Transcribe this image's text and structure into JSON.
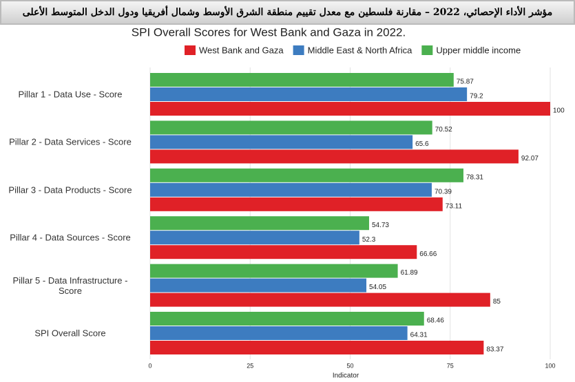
{
  "header": {
    "title": "مؤشر الأداء الإحصائي، 2022 – مقارنة فلسطين مع معدل تقييم منطقة الشرق الأوسط وشمال أفريقيا ودول الدخل المتوسط الأعلى"
  },
  "chart_data": {
    "type": "bar",
    "orientation": "horizontal",
    "title": "SPI Overall Scores for West Bank and Gaza in 2022.",
    "x_label": "Indicator",
    "categories": [
      "Pillar 1 - Data Use - Score",
      "Pillar 2 - Data Services - Score",
      "Pillar 3 - Data Products - Score",
      "Pillar 4 - Data Sources - Score",
      "Pillar 5 - Data Infrastructure - Score",
      "SPI Overall Score"
    ],
    "series": [
      {
        "name": "West Bank and Gaza",
        "color": "#e02127",
        "values": [
          100,
          92.07,
          73.11,
          66.66,
          85,
          83.37
        ]
      },
      {
        "name": "Middle East & North Africa",
        "color": "#3d7cc0",
        "values": [
          79.2,
          65.6,
          70.39,
          52.3,
          54.05,
          64.31
        ]
      },
      {
        "name": "Upper middle income",
        "color": "#4bb04f",
        "values": [
          75.87,
          70.52,
          78.31,
          54.73,
          61.89,
          68.46
        ]
      }
    ],
    "xlim": [
      0,
      100
    ],
    "xticks": [
      0,
      25,
      50,
      75,
      100
    ],
    "grid": true
  }
}
